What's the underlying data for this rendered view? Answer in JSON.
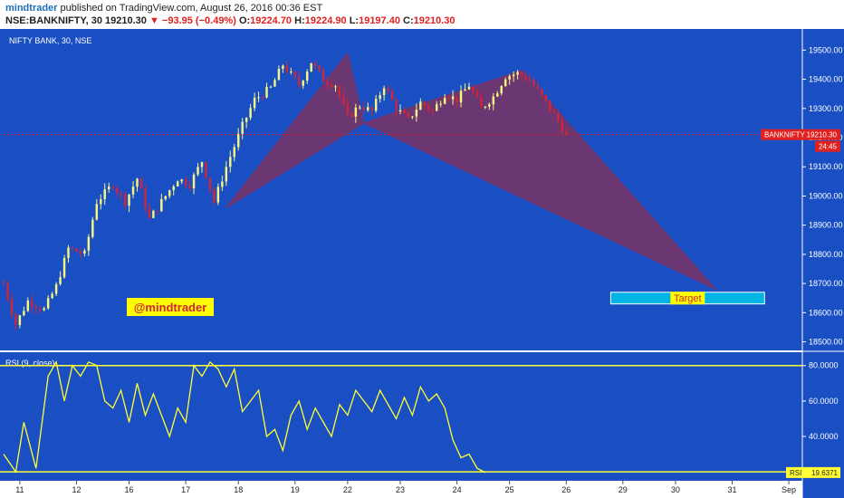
{
  "header": {
    "author": "mindtrader",
    "published_text": "published on TradingView.com, August 26, 2016 00:36 EST",
    "symbol": "NSE:BANKNIFTY, 30",
    "last": "19210.30",
    "change": "▼ −93.95 (−0.49%)",
    "o_label": "O:",
    "o_value": "19224.70",
    "h_label": "H:",
    "h_value": "19224.90",
    "l_label": "L:",
    "l_value": "19197.40",
    "c_label": "C:",
    "c_value": "19210.30"
  },
  "price_pane": {
    "title": "NIFTY BANK, 30, NSE",
    "watermark": "@mindtrader",
    "target_label": "Target",
    "price_tag_label": "BANKNIFTY",
    "price_tag_value": "19210.30",
    "countdown": "24:45",
    "y_ticks": [
      "19500.00",
      "19400.00",
      "19300.00",
      "19200.00",
      "19100.00",
      "19000.00",
      "18900.00",
      "18800.00",
      "18700.00",
      "18600.00",
      "18500.00"
    ]
  },
  "rsi_pane": {
    "title": "RSI (9, close)",
    "y_ticks": [
      "80.0000",
      "60.0000",
      "40.0000"
    ],
    "rsi_tag_label": "RSI",
    "rsi_tag_value": "19.6371"
  },
  "x_ticks": [
    "11",
    "12",
    "16",
    "17",
    "18",
    "19",
    "22",
    "23",
    "24",
    "25",
    "26",
    "29",
    "30",
    "31",
    "Sep"
  ],
  "colors": {
    "background": "#1a4fc4",
    "bull": "#f5f580",
    "bear": "#d0243a",
    "pattern": "#7a3265",
    "rsi_line": "#ffff33",
    "target_box": "#00b4e6",
    "price_tag": "#e02020",
    "watermark_bg": "#ffff00"
  },
  "chart_data": {
    "type": "candlestick",
    "series_name": "NIFTY BANK, 30, NSE",
    "ohlc_anchor_path": [
      [
        0,
        18700
      ],
      [
        3,
        18560
      ],
      [
        6,
        18640
      ],
      [
        10,
        18610
      ],
      [
        13,
        18690
      ],
      [
        16,
        18820
      ],
      [
        20,
        18800
      ],
      [
        23,
        18980
      ],
      [
        27,
        19040
      ],
      [
        30,
        18980
      ],
      [
        33,
        19060
      ],
      [
        36,
        18920
      ],
      [
        40,
        19000
      ],
      [
        43,
        19060
      ],
      [
        46,
        19040
      ],
      [
        49,
        19120
      ],
      [
        52,
        18980
      ],
      [
        55,
        19100
      ],
      [
        59,
        19240
      ],
      [
        62,
        19330
      ],
      [
        66,
        19370
      ],
      [
        69,
        19450
      ],
      [
        73,
        19380
      ],
      [
        76,
        19460
      ],
      [
        79,
        19400
      ],
      [
        82,
        19380
      ],
      [
        85,
        19270
      ],
      [
        88,
        19310
      ],
      [
        91,
        19290
      ],
      [
        94,
        19380
      ],
      [
        97,
        19300
      ],
      [
        100,
        19260
      ],
      [
        103,
        19320
      ],
      [
        106,
        19290
      ],
      [
        109,
        19350
      ],
      [
        112,
        19330
      ],
      [
        115,
        19380
      ],
      [
        118,
        19300
      ],
      [
        121,
        19340
      ],
      [
        124,
        19410
      ],
      [
        127,
        19420
      ],
      [
        130,
        19400
      ],
      [
        133,
        19340
      ],
      [
        136,
        19280
      ],
      [
        139,
        19210
      ]
    ],
    "rsi_anchor_path": [
      [
        0,
        30
      ],
      [
        3,
        20
      ],
      [
        5,
        48
      ],
      [
        8,
        22
      ],
      [
        11,
        74
      ],
      [
        13,
        82
      ],
      [
        15,
        60
      ],
      [
        17,
        80
      ],
      [
        19,
        74
      ],
      [
        21,
        82
      ],
      [
        23,
        80
      ],
      [
        25,
        60
      ],
      [
        27,
        56
      ],
      [
        29,
        66
      ],
      [
        31,
        48
      ],
      [
        33,
        70
      ],
      [
        35,
        52
      ],
      [
        37,
        64
      ],
      [
        39,
        52
      ],
      [
        41,
        40
      ],
      [
        43,
        56
      ],
      [
        45,
        48
      ],
      [
        47,
        80
      ],
      [
        49,
        74
      ],
      [
        51,
        82
      ],
      [
        53,
        78
      ],
      [
        55,
        68
      ],
      [
        57,
        78
      ],
      [
        59,
        54
      ],
      [
        61,
        60
      ],
      [
        63,
        66
      ],
      [
        65,
        40
      ],
      [
        67,
        44
      ],
      [
        69,
        32
      ],
      [
        71,
        52
      ],
      [
        73,
        60
      ],
      [
        75,
        44
      ],
      [
        77,
        56
      ],
      [
        79,
        48
      ],
      [
        81,
        40
      ],
      [
        83,
        58
      ],
      [
        85,
        52
      ],
      [
        87,
        66
      ],
      [
        89,
        60
      ],
      [
        91,
        54
      ],
      [
        93,
        66
      ],
      [
        95,
        58
      ],
      [
        97,
        50
      ],
      [
        99,
        62
      ],
      [
        101,
        52
      ],
      [
        103,
        68
      ],
      [
        105,
        60
      ],
      [
        107,
        64
      ],
      [
        109,
        56
      ],
      [
        111,
        38
      ],
      [
        113,
        28
      ],
      [
        115,
        30
      ],
      [
        117,
        22
      ],
      [
        119,
        19.6371
      ]
    ],
    "pattern_points": [
      {
        "t": 55,
        "price": 18960
      },
      {
        "t": 85,
        "price": 19490
      },
      {
        "t": 89,
        "price": 19250
      },
      {
        "t": 128,
        "price": 19430
      },
      {
        "t": 176,
        "price": 18680
      }
    ],
    "target_zone": {
      "t_start": 150,
      "t_end": 188,
      "price_low": 18630,
      "price_high": 18670
    },
    "y_range": [
      18480,
      19560
    ],
    "rsi_range": [
      16,
      86
    ],
    "rsi_levels": [
      80,
      20
    ],
    "last_price": 19210.3,
    "last_rsi": 19.6371,
    "x_tick_positions": [
      4,
      18,
      31,
      45,
      58,
      72,
      85,
      98,
      112,
      125,
      139,
      153,
      166,
      180,
      194
    ],
    "t_range": [
      0,
      196
    ],
    "random_seed": 7
  }
}
